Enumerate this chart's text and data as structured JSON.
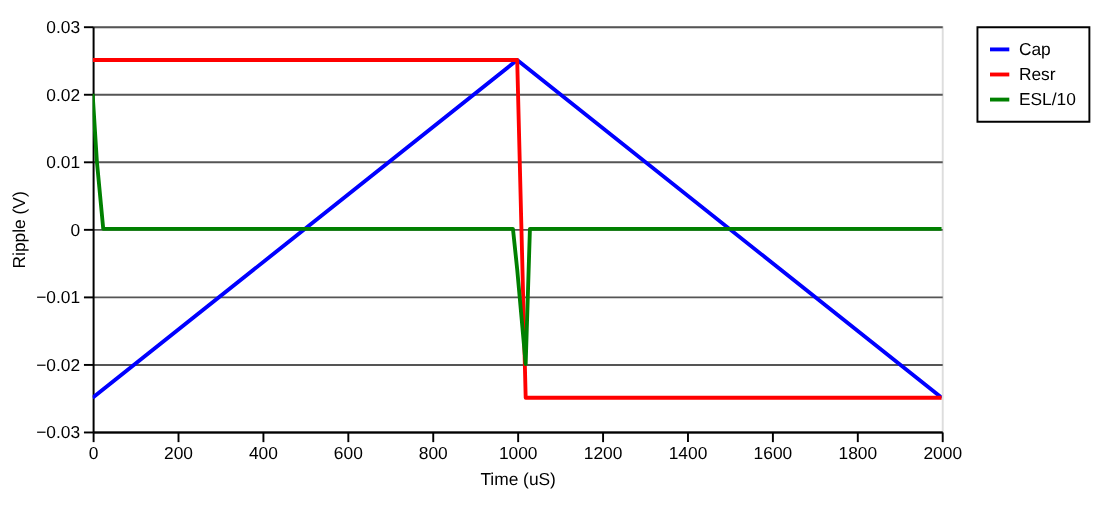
{
  "chart_data": {
    "type": "line",
    "xlabel": "Time (uS)",
    "ylabel": "Ripple (V)",
    "xlim": [
      0,
      2000
    ],
    "xticks": [
      0,
      200,
      400,
      600,
      800,
      1000,
      1200,
      1400,
      1600,
      1800,
      2000
    ],
    "ylim": [
      -0.03,
      0.03
    ],
    "yticks": [
      -0.03,
      -0.02,
      -0.01,
      0,
      0.01,
      0.02,
      0.03
    ],
    "grid": "y",
    "legend": "right",
    "marker": "none",
    "line_style": "solid",
    "series": [
      {
        "name": "Cap",
        "color": "#0000ff",
        "x": [
          0,
          1000,
          2000
        ],
        "values": [
          -0.025,
          0.025,
          -0.025
        ]
      },
      {
        "name": "Resr",
        "color": "#ff0000",
        "x": [
          0,
          1000,
          1020,
          2000
        ],
        "values": [
          0.025,
          0.025,
          -0.025,
          -0.025
        ]
      },
      {
        "name": "ESL/10",
        "color": "#008000",
        "x": [
          0,
          10,
          25,
          990,
          1000,
          1010,
          1020,
          1030,
          2000
        ],
        "values": [
          0.02,
          0.01,
          0,
          0,
          -0.006,
          -0.013,
          -0.02,
          0,
          0
        ]
      }
    ]
  }
}
